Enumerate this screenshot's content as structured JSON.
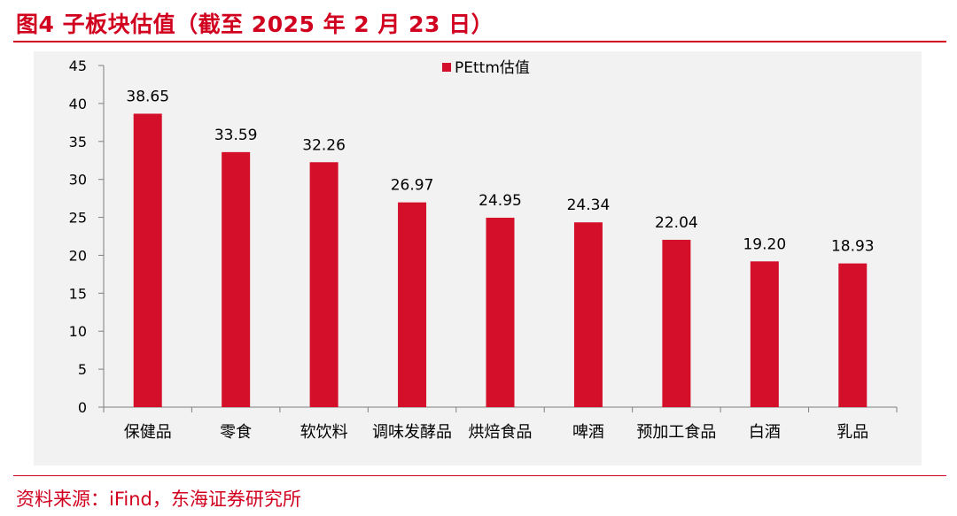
{
  "figure": {
    "title": "图4  子板块估值（截至 2025 年 2 月 23 日）",
    "source": "资料来源：iFind，东海证券研究所"
  },
  "colors": {
    "accent": "#d1001f",
    "bar": "#d30f2a",
    "plot_background": "#f2f2f2"
  },
  "chart_data": {
    "type": "bar",
    "title": "",
    "xlabel": "",
    "ylabel": "",
    "categories": [
      "保健品",
      "零食",
      "软饮料",
      "调味发酵品",
      "烘焙食品",
      "啤酒",
      "预加工食品",
      "白酒",
      "乳品"
    ],
    "series": [
      {
        "name": "PEttm估值",
        "values": [
          38.65,
          33.59,
          32.26,
          26.97,
          24.95,
          24.34,
          22.04,
          19.2,
          18.93
        ],
        "labels": [
          "38.65",
          "33.59",
          "32.26",
          "26.97",
          "24.95",
          "24.34",
          "22.04",
          "19.20",
          "18.93"
        ]
      }
    ],
    "ylim": [
      0,
      45
    ],
    "yticks": [
      0,
      5,
      10,
      15,
      20,
      25,
      30,
      35,
      40,
      45
    ],
    "grid": false,
    "legend": "top-center"
  }
}
